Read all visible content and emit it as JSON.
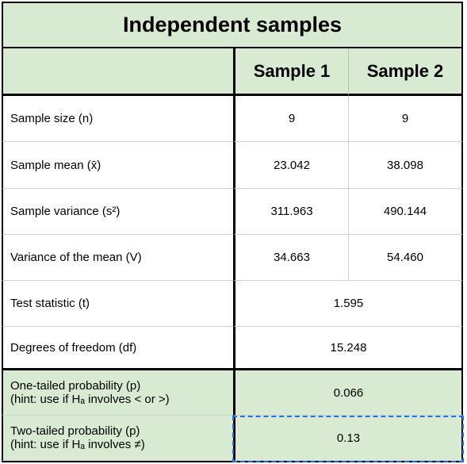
{
  "title": "Independent samples",
  "headers": {
    "sample1": "Sample 1",
    "sample2": "Sample 2"
  },
  "rows": [
    {
      "label": "Sample size (n)",
      "v1": "9",
      "v2": "9"
    },
    {
      "label": "Sample mean (x̄)",
      "v1": "23.042",
      "v2": "38.098"
    },
    {
      "label": "Sample variance (s²)",
      "v1": "311.963",
      "v2": "490.144"
    },
    {
      "label": "Variance of the mean (V)",
      "v1": "34.663",
      "v2": "54.460"
    }
  ],
  "span_rows": [
    {
      "label": "Test statistic (t)",
      "value": "1.595"
    },
    {
      "label": "Degrees of freedom (df)",
      "value": "15.248"
    }
  ],
  "prob_rows": [
    {
      "label_line1": "One-tailed probability (p)",
      "label_line2": "(hint: use if Hₐ involves < or >)",
      "value": "0.066"
    },
    {
      "label_line1": "Two-tailed probability (p)",
      "label_line2": "(hint: use if Hₐ involves ≠)",
      "value": "0.13"
    }
  ],
  "colors": {
    "header_bg": "#d9ead3",
    "border": "#000000",
    "selection": "#1a73e8"
  }
}
